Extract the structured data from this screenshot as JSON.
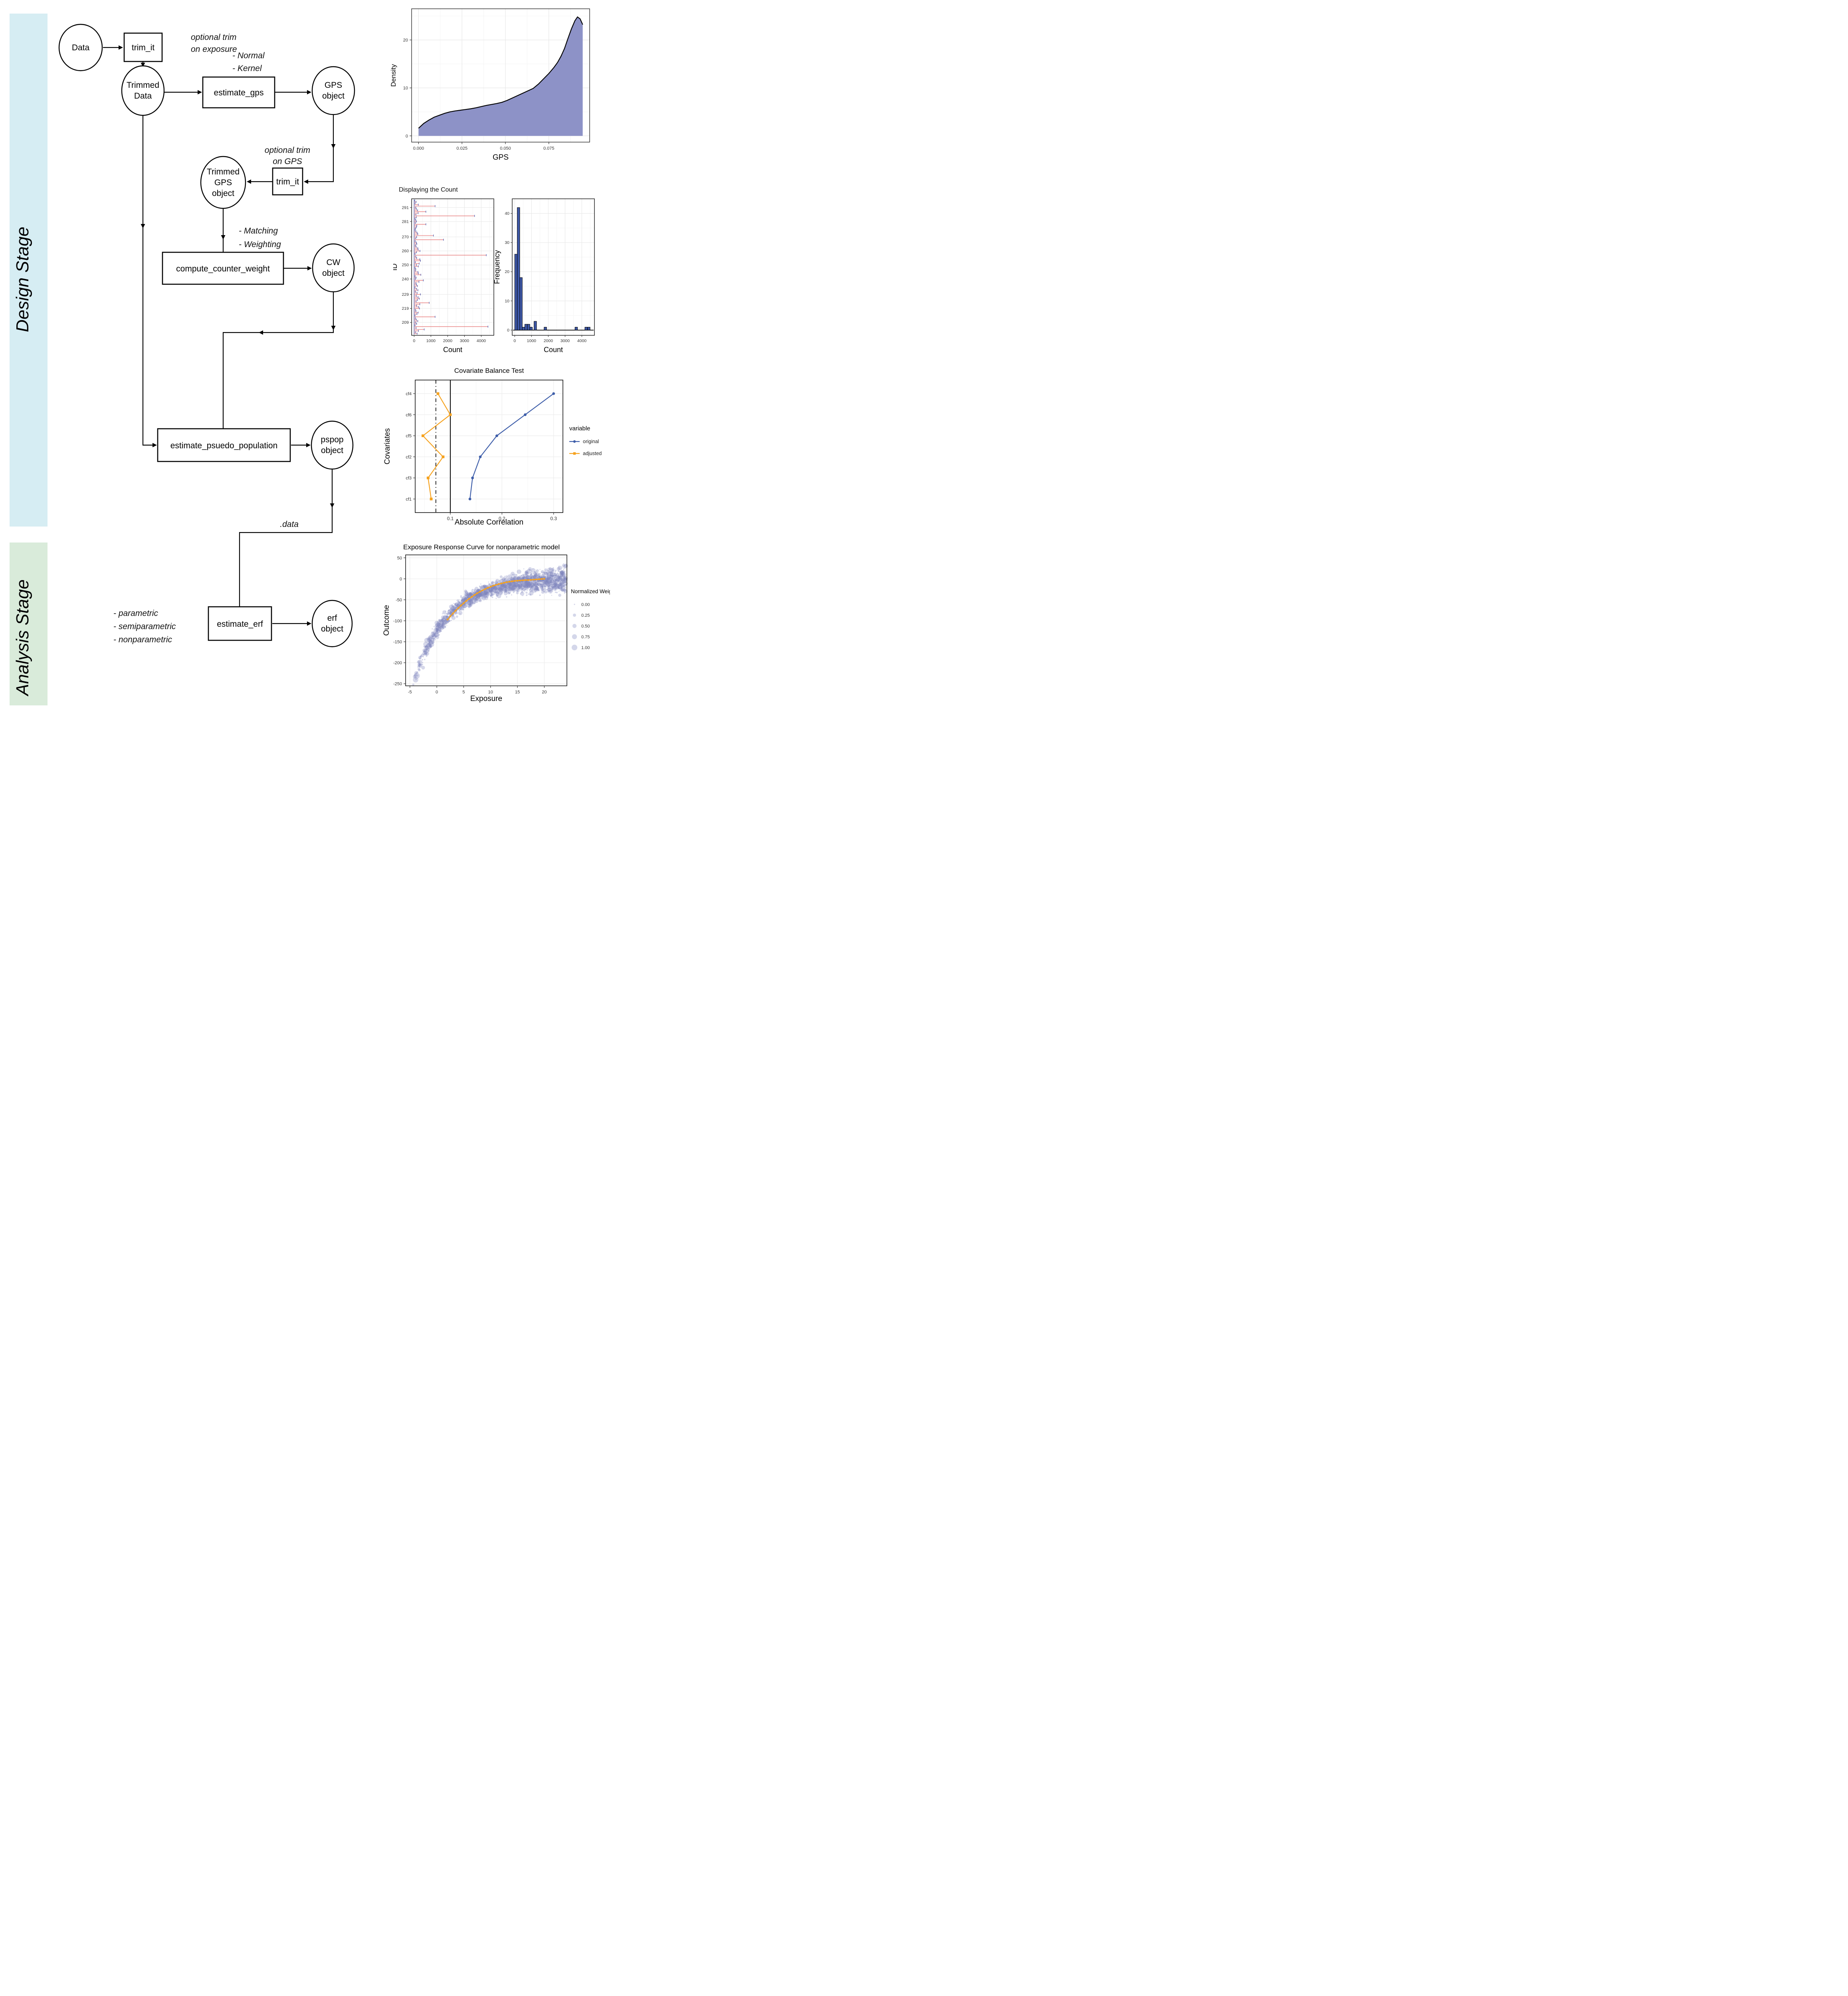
{
  "stages": {
    "design": {
      "label": "Design Stage",
      "color": "#D6EDF3"
    },
    "analysis": {
      "label": "Analysis Stage",
      "color": "#D9EBDA"
    }
  },
  "flowchart": {
    "nodes": {
      "data": {
        "label": "Data"
      },
      "trim_it_1": {
        "label": "trim_it"
      },
      "trimmed_data": {
        "lines": [
          "Trimmed",
          "Data"
        ]
      },
      "estimate_gps": {
        "label": "estimate_gps"
      },
      "gps_object": {
        "lines": [
          "GPS",
          "object"
        ]
      },
      "trim_it_2": {
        "label": "trim_it"
      },
      "trimmed_gps": {
        "lines": [
          "Trimmed",
          "GPS",
          "object"
        ]
      },
      "compute_counter_weight": {
        "label": "compute_counter_weight"
      },
      "cw_object": {
        "lines": [
          "CW",
          "object"
        ]
      },
      "estimate_psuedo_population": {
        "label": "estimate_psuedo_population"
      },
      "pspop_object": {
        "lines": [
          "pspop",
          "object"
        ]
      },
      "estimate_erf": {
        "label": "estimate_erf"
      },
      "erf_object": {
        "lines": [
          "erf",
          "object"
        ]
      }
    },
    "notes": {
      "trim_exposure": {
        "lines": [
          "optional trim",
          "on exposure"
        ]
      },
      "gps_methods": {
        "lines": [
          "-  Normal",
          "-  Kernel"
        ]
      },
      "trim_gps": {
        "lines": [
          "optional trim",
          "on GPS"
        ]
      },
      "cw_methods": {
        "lines": [
          "-  Matching",
          "-  Weighting"
        ]
      },
      "data_attr": {
        "label": ".data"
      },
      "erf_methods": {
        "lines": [
          "-  parametric",
          "-  semiparametric",
          "-  nonparametric"
        ]
      }
    }
  },
  "chart_data": [
    {
      "id": "gps_density",
      "type": "area",
      "title": "",
      "xlabel": "GPS",
      "ylabel": "Density",
      "x_ticks": [
        0,
        0.025,
        0.05,
        0.075
      ],
      "x_tick_labels": [
        "0.000",
        "0.025",
        "0.050",
        "0.075"
      ],
      "x_minor": [
        0.0125,
        0.0375,
        0.0625,
        0.0875
      ],
      "y_ticks": [
        0,
        10,
        20
      ],
      "y_minor": [
        5,
        15,
        25
      ],
      "xlim": [
        -0.004,
        0.0985
      ],
      "ylim": [
        -1.3,
        26.5
      ],
      "fill": "#8D92C7",
      "line_color": "#000000",
      "points": [
        [
          0,
          1.6
        ],
        [
          0.003,
          2.6
        ],
        [
          0.006,
          3.3
        ],
        [
          0.009,
          3.9
        ],
        [
          0.012,
          4.3
        ],
        [
          0.015,
          4.7
        ],
        [
          0.018,
          5.0
        ],
        [
          0.021,
          5.2
        ],
        [
          0.024,
          5.35
        ],
        [
          0.027,
          5.5
        ],
        [
          0.03,
          5.65
        ],
        [
          0.033,
          5.85
        ],
        [
          0.036,
          6.1
        ],
        [
          0.039,
          6.35
        ],
        [
          0.042,
          6.55
        ],
        [
          0.045,
          6.75
        ],
        [
          0.048,
          7.0
        ],
        [
          0.051,
          7.4
        ],
        [
          0.054,
          7.9
        ],
        [
          0.057,
          8.4
        ],
        [
          0.06,
          8.9
        ],
        [
          0.063,
          9.4
        ],
        [
          0.066,
          9.9
        ],
        [
          0.069,
          10.8
        ],
        [
          0.072,
          11.9
        ],
        [
          0.075,
          13.0
        ],
        [
          0.078,
          14.3
        ],
        [
          0.08,
          15.3
        ],
        [
          0.082,
          16.6
        ],
        [
          0.084,
          18.2
        ],
        [
          0.086,
          20.3
        ],
        [
          0.088,
          22.3
        ],
        [
          0.09,
          24.0
        ],
        [
          0.0915,
          24.8
        ],
        [
          0.093,
          24.4
        ],
        [
          0.094,
          23.6
        ],
        [
          0.0945,
          23.2
        ]
      ]
    },
    {
      "id": "count_display",
      "type": "bar",
      "title": "Displaying the Count",
      "lollipop": {
        "xlabel": "Count",
        "ylabel": "ID",
        "id_start": 201,
        "x_ticks": [
          0,
          1000,
          2000,
          3000,
          4000
        ],
        "x_minor": [
          500,
          1500,
          2500,
          3500,
          4500
        ],
        "y_ticks": [
          209,
          219,
          229,
          240,
          250,
          260,
          270,
          281,
          291
        ],
        "bar_color": "#E25C5C",
        "cap_color": "#4F63B5",
        "values": [
          180,
          90,
          260,
          600,
          120,
          4400,
          60,
          150,
          100,
          220,
          130,
          80,
          1250,
          60,
          170,
          240,
          110,
          90,
          320,
          270,
          150,
          340,
          900,
          120,
          200,
          310,
          240,
          130,
          380,
          180,
          90,
          230,
          150,
          60,
          200,
          140,
          110,
          290,
          550,
          80,
          120,
          60,
          400,
          250,
          230,
          90,
          100,
          60,
          250,
          140,
          300,
          80,
          380,
          340,
          150,
          100,
          4300,
          60,
          140,
          350,
          240,
          220,
          120,
          90,
          160,
          130,
          70,
          1750,
          100,
          150,
          1150,
          220,
          180,
          110,
          60,
          90,
          130,
          160,
          700,
          80,
          140,
          100,
          60,
          130,
          3600,
          110,
          240,
          700,
          210,
          130,
          100,
          1250,
          250,
          60,
          120,
          40
        ]
      },
      "histogram": {
        "xlabel": "Count",
        "ylabel": "Frequency",
        "binwidth": 150,
        "x_ticks": [
          0,
          1000,
          2000,
          3000,
          4000
        ],
        "x_minor": [
          500,
          1500,
          2500,
          3500,
          4500
        ],
        "y_ticks": [
          0,
          10,
          20,
          30,
          40
        ],
        "y_minor": [
          5,
          15,
          25,
          35
        ],
        "fill": "#3D57A6",
        "bins": [
          {
            "x0": 0,
            "f": 26
          },
          {
            "x0": 150,
            "f": 42
          },
          {
            "x0": 300,
            "f": 18
          },
          {
            "x0": 450,
            "f": 1
          },
          {
            "x0": 600,
            "f": 2
          },
          {
            "x0": 750,
            "f": 2
          },
          {
            "x0": 900,
            "f": 1
          },
          {
            "x0": 1150,
            "f": 3
          },
          {
            "x0": 1750,
            "f": 1
          },
          {
            "x0": 3590,
            "f": 1
          },
          {
            "x0": 4180,
            "f": 1
          },
          {
            "x0": 4340,
            "f": 1
          }
        ]
      }
    },
    {
      "id": "covariate_balance",
      "type": "line",
      "title": "Covariate Balance Test",
      "xlabel": "Absolute Correlation",
      "ylabel": "Covariates",
      "categories": [
        "cf4",
        "cf6",
        "cf5",
        "cf2",
        "cf3",
        "cf1"
      ],
      "x_ticks": [
        0.1,
        0.2,
        0.3
      ],
      "x_tick_labels": [
        "0.1",
        "0.2",
        "0.3"
      ],
      "x_minor": [
        0.05,
        0.15,
        0.25
      ],
      "xlim": [
        0.032,
        0.318
      ],
      "vline_solid": 0.1,
      "vline_dashdot": 0.072,
      "legend_title": "variable",
      "series": [
        {
          "name": "original",
          "color": "#3D5DA9",
          "marker": "circle",
          "values": [
            0.3,
            0.245,
            0.19,
            0.158,
            0.143,
            0.138
          ]
        },
        {
          "name": "adjusted",
          "color": "#F6A21E",
          "marker": "square",
          "values": [
            0.076,
            0.1,
            0.047,
            0.086,
            0.057,
            0.063
          ]
        }
      ]
    },
    {
      "id": "exposure_response",
      "type": "scatter",
      "title": "Exposure Response Curve for nonparametric model",
      "xlabel": "Exposure",
      "ylabel": "Outcome",
      "x_ticks": [
        -5,
        0,
        5,
        10,
        15,
        20
      ],
      "y_ticks": [
        50,
        0,
        -50,
        -100,
        -150,
        -200,
        -250
      ],
      "xlim": [
        -5.8,
        24.2
      ],
      "ylim": [
        -255,
        57
      ],
      "scatter": {
        "n": 2200,
        "seed": 42,
        "x_min": -4.4,
        "x_span": 28.4,
        "x_pow": 0.72,
        "curve_a": -235,
        "curve_b": 0.16,
        "curve_c": 4,
        "noise_sd": 8.5,
        "color": "#7F85BF",
        "opacity": 0.32
      },
      "smooth": {
        "color": "#F6A21E",
        "points": [
          [
            2,
            -97
          ],
          [
            2.5,
            -89.5
          ],
          [
            3,
            -82.5
          ],
          [
            3.5,
            -76
          ],
          [
            4,
            -69.5
          ],
          [
            4.5,
            -63.5
          ],
          [
            5,
            -58
          ],
          [
            5.5,
            -52.5
          ],
          [
            6,
            -47.5
          ],
          [
            6.5,
            -43
          ],
          [
            7,
            -38.5
          ],
          [
            7.5,
            -34.5
          ],
          [
            8,
            -31
          ],
          [
            8.5,
            -27.5
          ],
          [
            9,
            -24.5
          ],
          [
            9.5,
            -21.5
          ],
          [
            10,
            -19
          ],
          [
            10.5,
            -16.5
          ],
          [
            11,
            -14.5
          ],
          [
            11.5,
            -12.5
          ],
          [
            12,
            -11
          ],
          [
            12.5,
            -9.5
          ],
          [
            13,
            -8
          ],
          [
            13.5,
            -7
          ],
          [
            14,
            -6
          ],
          [
            14.5,
            -5
          ],
          [
            15,
            -4.5
          ],
          [
            15.5,
            -4
          ],
          [
            16,
            -3.5
          ],
          [
            16.5,
            -3
          ],
          [
            17,
            -3
          ],
          [
            17.5,
            -2.5
          ],
          [
            18,
            -2
          ],
          [
            18.5,
            -1.5
          ],
          [
            19,
            -1
          ],
          [
            19.5,
            -0.5
          ],
          [
            20,
            0
          ]
        ]
      },
      "legend": {
        "title": "Normalized Weight",
        "sizes": [
          0,
          0.25,
          0.5,
          0.75,
          1
        ],
        "labels": [
          "0.00",
          "0.25",
          "0.50",
          "0.75",
          "1.00"
        ]
      }
    }
  ]
}
